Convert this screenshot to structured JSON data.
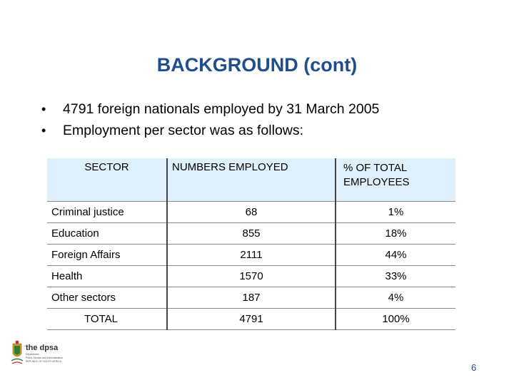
{
  "slide": {
    "title": "BACKGROUND (cont)",
    "bullets": [
      "4791 foreign nationals employed by 31 March 2005",
      "Employment per sector was as follows:"
    ],
    "bullet_glyph": "•",
    "page_number": "6"
  },
  "table": {
    "headers": [
      "SECTOR",
      "NUMBERS EMPLOYED",
      "% OF TOTAL EMPLOYEES"
    ],
    "rows": [
      {
        "sector": "Criminal justice",
        "numbers": "68",
        "percent": "1%"
      },
      {
        "sector": "Education",
        "numbers": "855",
        "percent": "18%"
      },
      {
        "sector": "Foreign Affairs",
        "numbers": "2111",
        "percent": "44%"
      },
      {
        "sector": "Health",
        "numbers": "1570",
        "percent": "33%"
      },
      {
        "sector": "Other sectors",
        "numbers": "187",
        "percent": "4%"
      },
      {
        "sector": "TOTAL",
        "numbers": "4791",
        "percent": "100%"
      }
    ]
  },
  "logo": {
    "icon": "coat-of-arms-icon",
    "name": "the dpsa",
    "caption_lines": [
      "Department:",
      "Public Service and Administration",
      "REPUBLIC OF SOUTH AFRICA"
    ]
  },
  "colors": {
    "title": "#1f4e8c",
    "header_fill": "#ddf0fb",
    "logo_red": "#c0302b",
    "logo_green": "#2f7d3b",
    "logo_gold": "#c89a2a"
  }
}
